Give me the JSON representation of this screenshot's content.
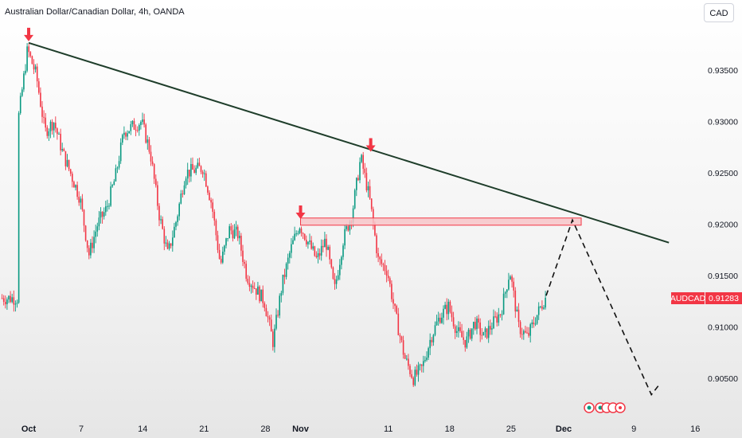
{
  "header": {
    "title": "Australian Dollar/Canadian Dollar, 4h, OANDA"
  },
  "currency_button": {
    "label": "CAD"
  },
  "price_label": {
    "symbol": "AUDCAD",
    "value": "0.91283",
    "color": "#f23645"
  },
  "colors": {
    "up": "#089981",
    "down": "#f23645",
    "trendline": "#1e3d2a",
    "zone_fill": "#f7c4c8",
    "zone_border": "#f23645",
    "arrow": "#f23645"
  },
  "chart_data": {
    "type": "candlestick",
    "symbol": "AUDCAD",
    "interval": "4h",
    "y_ticks": [
      "0.93500",
      "0.93000",
      "0.92500",
      "0.92000",
      "0.91500",
      "0.91000",
      "0.90500"
    ],
    "x_ticks": [
      {
        "label": "Oct",
        "bold": true
      },
      {
        "label": "7",
        "bold": false
      },
      {
        "label": "14",
        "bold": false
      },
      {
        "label": "21",
        "bold": false
      },
      {
        "label": "28",
        "bold": false
      },
      {
        "label": "Nov",
        "bold": true
      },
      {
        "label": "11",
        "bold": false
      },
      {
        "label": "18",
        "bold": false
      },
      {
        "label": "25",
        "bold": false
      },
      {
        "label": "Dec",
        "bold": true
      },
      {
        "label": "9",
        "bold": false
      },
      {
        "label": "16",
        "bold": false
      }
    ],
    "price_path": [
      [
        "Sep 30",
        0.9305
      ],
      [
        "Oct 1",
        0.937
      ],
      [
        "Oct 2",
        0.9345
      ],
      [
        "Oct 3",
        0.929
      ],
      [
        "Oct 4",
        0.93
      ],
      [
        "Oct 5",
        0.927
      ],
      [
        "Oct 7",
        0.9225
      ],
      [
        "Oct 8",
        0.917
      ],
      [
        "Oct 9",
        0.92
      ],
      [
        "Oct 10",
        0.9215
      ],
      [
        "Oct 11",
        0.9245
      ],
      [
        "Oct 12",
        0.929
      ],
      [
        "Oct 14",
        0.93
      ],
      [
        "Oct 15",
        0.927
      ],
      [
        "Oct 16",
        0.921
      ],
      [
        "Oct 17",
        0.917
      ],
      [
        "Oct 18",
        0.9205
      ],
      [
        "Oct 19",
        0.925
      ],
      [
        "Oct 21",
        0.9255
      ],
      [
        "Oct 22",
        0.922
      ],
      [
        "Oct 23",
        0.916
      ],
      [
        "Oct 24",
        0.9195
      ],
      [
        "Oct 25",
        0.919
      ],
      [
        "Oct 26",
        0.915
      ],
      [
        "Oct 28",
        0.9125
      ],
      [
        "Oct 29",
        0.9085
      ],
      [
        "Oct 30",
        0.914
      ],
      [
        "Oct 31",
        0.9175
      ],
      [
        "Nov 1",
        0.92
      ],
      [
        "Nov 3",
        0.9165
      ],
      [
        "Nov 4",
        0.9185
      ],
      [
        "Nov 5",
        0.9135
      ],
      [
        "Nov 6",
        0.9185
      ],
      [
        "Nov 7",
        0.921
      ],
      [
        "Nov 8",
        0.9265
      ],
      [
        "Nov 9",
        0.9225
      ],
      [
        "Nov 10",
        0.9165
      ],
      [
        "Nov 11",
        0.9155
      ],
      [
        "Nov 12",
        0.911
      ],
      [
        "Nov 13",
        0.907
      ],
      [
        "Nov 14",
        0.905
      ],
      [
        "Nov 15",
        0.906
      ],
      [
        "Nov 16",
        0.909
      ],
      [
        "Nov 17",
        0.911
      ],
      [
        "Nov 18",
        0.912
      ],
      [
        "Nov 19",
        0.9095
      ],
      [
        "Nov 20",
        0.9085
      ],
      [
        "Nov 21",
        0.9105
      ],
      [
        "Nov 22",
        0.909
      ],
      [
        "Nov 24",
        0.9115
      ],
      [
        "Nov 25",
        0.9155
      ],
      [
        "Nov 26",
        0.91
      ],
      [
        "Nov 27",
        0.909
      ],
      [
        "Nov 28",
        0.911
      ],
      [
        "Nov 29",
        0.9128
      ]
    ],
    "trendline": {
      "from": [
        "Oct 1",
        0.93765
      ],
      "to": [
        "Dec 13",
        0.9182
      ]
    },
    "resistance_zone": {
      "from": "Nov 1",
      "to": "Dec 3",
      "top": 0.9206,
      "bottom": 0.9199
    },
    "arrows": [
      [
        "Oct 1",
        0.93765
      ],
      [
        "Nov 1",
        0.92035
      ],
      [
        "Nov 9",
        0.9269
      ]
    ],
    "projection": [
      [
        "Nov 29",
        0.91305
      ],
      [
        "Dec 2",
        0.9204
      ],
      [
        "Dec 11",
        0.9034
      ],
      [
        "Dec 12",
        0.9045
      ]
    ],
    "last_price": 0.91283
  }
}
